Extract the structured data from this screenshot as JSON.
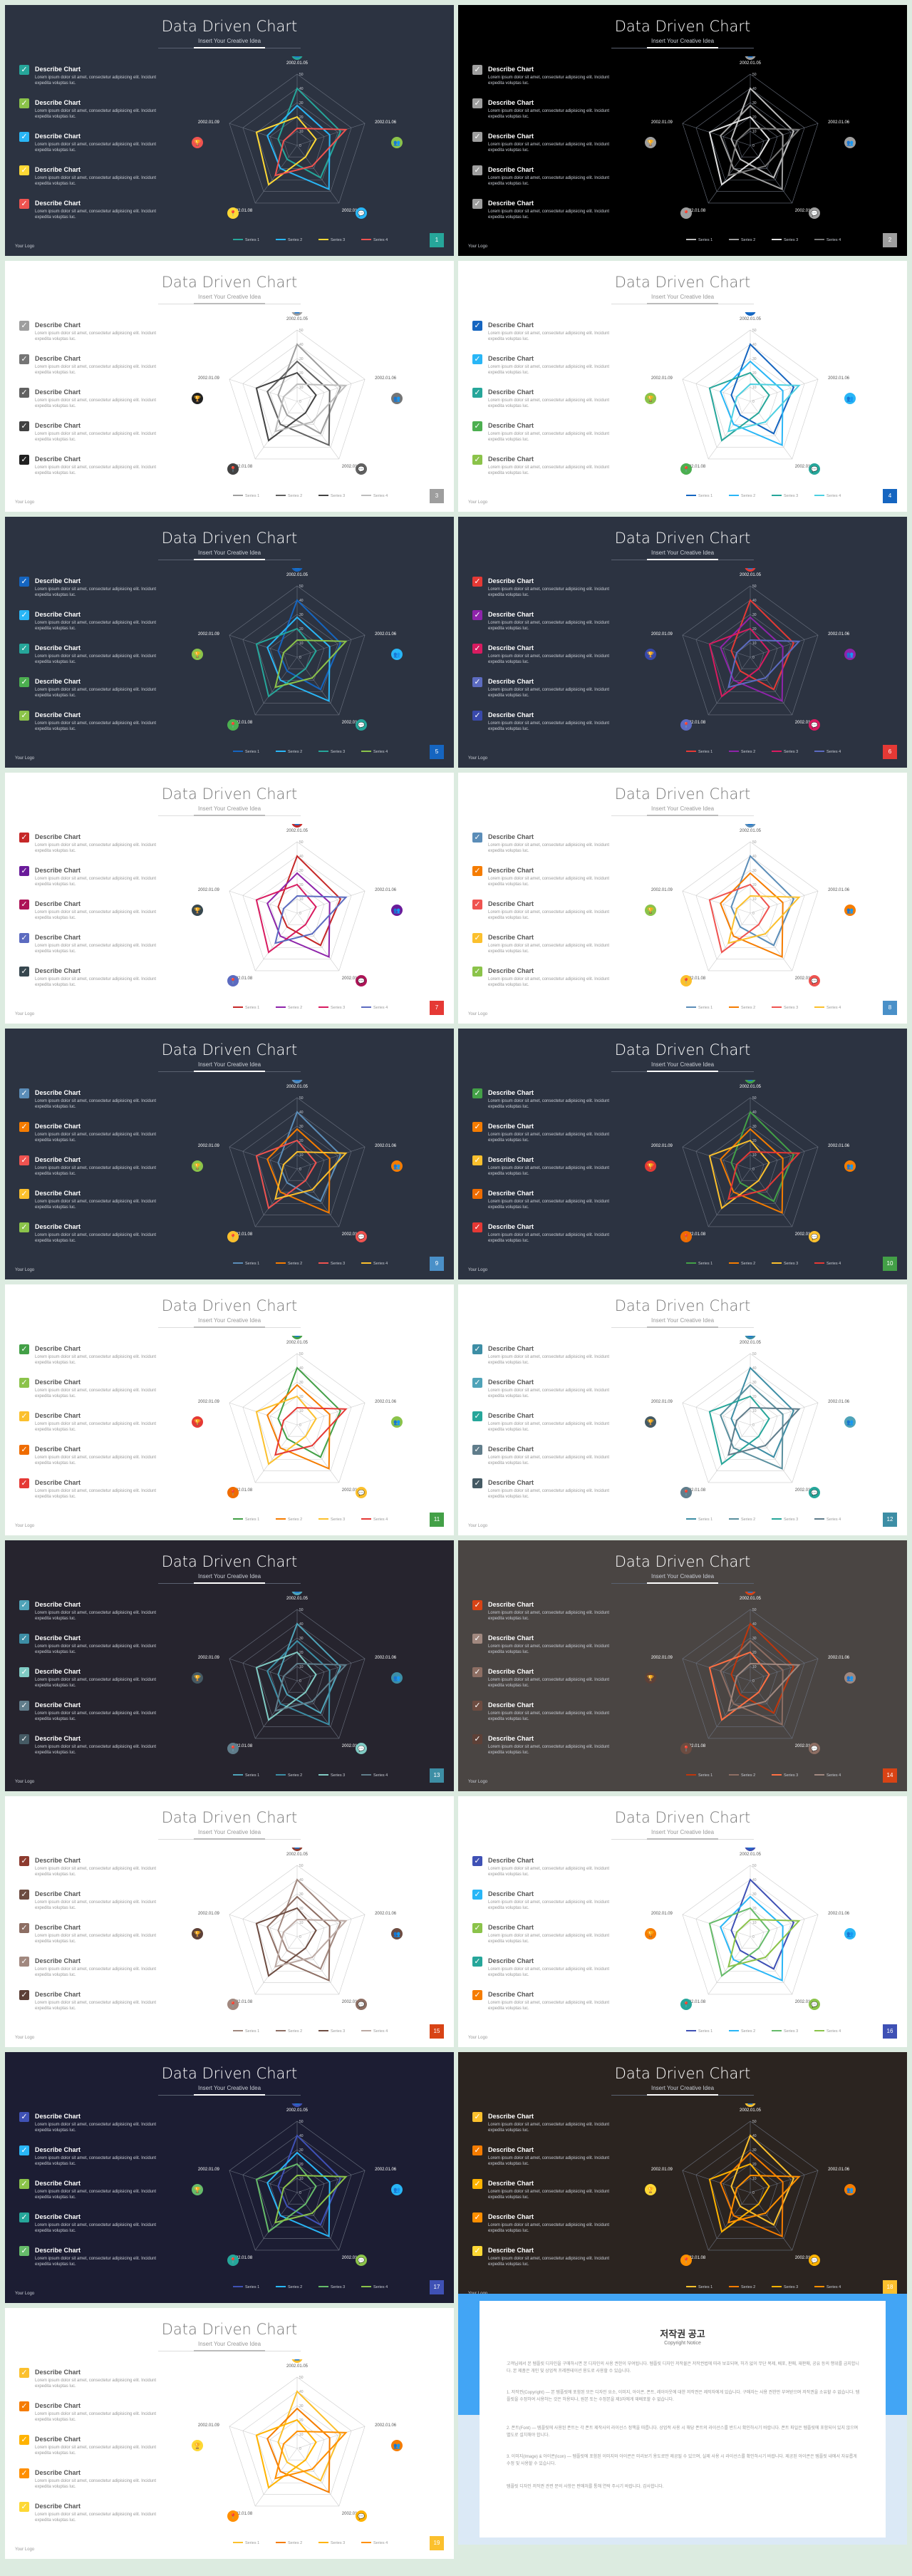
{
  "slide_title": "Data Driven Chart",
  "slide_subtitle": "Insert Your Creative Idea",
  "item_label": "Describe Chart",
  "item_desc": "Lorem ipsum dolor sit amet, consectetur adipisicing elit. Incidunt expedita voluptas luc.",
  "logo": "Your Logo",
  "radar_axis_labels": [
    "2002.01.05",
    "2002.01.06",
    "2002.01.07",
    "2002.01.08",
    "2002.01.09"
  ],
  "radar_ticks": [
    "0",
    "10",
    "20",
    "30",
    "40",
    "50"
  ],
  "series_names": [
    "Series 1",
    "Series 2",
    "Series 3",
    "Series 4"
  ],
  "chart_data": {
    "type": "radar",
    "categories": [
      "2002.01.05",
      "2002.01.06",
      "2002.01.07",
      "2002.01.08",
      "2002.01.09"
    ],
    "series": [
      {
        "name": "Series 1",
        "values": [
          40,
          32,
          28,
          12,
          14
        ]
      },
      {
        "name": "Series 2",
        "values": [
          28,
          24,
          38,
          20,
          22
        ]
      },
      {
        "name": "Series 3",
        "values": [
          20,
          14,
          10,
          34,
          30
        ]
      },
      {
        "name": "Series 4",
        "values": [
          12,
          36,
          18,
          26,
          10
        ]
      }
    ],
    "rlim": [
      0,
      50
    ]
  },
  "icon_names": [
    "user-icon",
    "team-icon",
    "chat-icon",
    "pin-icon",
    "trophy-icon"
  ],
  "slides": [
    {
      "num": "1",
      "bg": "#2c3341",
      "dark": true,
      "accent": "#26a69a",
      "series": [
        "#26a69a",
        "#29b6f6",
        "#fdd835",
        "#ef5350"
      ],
      "checks": [
        "#26a69a",
        "#8bc34a",
        "#29b6f6",
        "#fdd835",
        "#ef5350"
      ]
    },
    {
      "num": "2",
      "bg": "#000000",
      "dark": true,
      "accent": "#9e9e9e",
      "series": [
        "#bdbdbd",
        "#9e9e9e",
        "#e0e0e0",
        "#757575"
      ],
      "checks": [
        "#9e9e9e",
        "#9e9e9e",
        "#9e9e9e",
        "#9e9e9e",
        "#9e9e9e"
      ]
    },
    {
      "num": "3",
      "bg": "#ffffff",
      "dark": false,
      "accent": "#9e9e9e",
      "series": [
        "#9e9e9e",
        "#616161",
        "#424242",
        "#bdbdbd"
      ],
      "checks": [
        "#9e9e9e",
        "#757575",
        "#616161",
        "#424242",
        "#212121"
      ]
    },
    {
      "num": "4",
      "bg": "#ffffff",
      "dark": false,
      "accent": "#1565c0",
      "series": [
        "#1565c0",
        "#29b6f6",
        "#26a69a",
        "#4dd0e1"
      ],
      "checks": [
        "#1565c0",
        "#29b6f6",
        "#26a69a",
        "#4caf50",
        "#8bc34a"
      ]
    },
    {
      "num": "5",
      "bg": "#2c3341",
      "dark": true,
      "accent": "#1565c0",
      "series": [
        "#1565c0",
        "#29b6f6",
        "#26a69a",
        "#8bc34a"
      ],
      "checks": [
        "#1565c0",
        "#29b6f6",
        "#26a69a",
        "#4caf50",
        "#8bc34a"
      ]
    },
    {
      "num": "6",
      "bg": "#2c3341",
      "dark": true,
      "accent": "#e53935",
      "series": [
        "#e53935",
        "#8e24aa",
        "#d81b60",
        "#5c6bc0"
      ],
      "checks": [
        "#e53935",
        "#8e24aa",
        "#d81b60",
        "#5c6bc0",
        "#3949ab"
      ]
    },
    {
      "num": "7",
      "bg": "#ffffff",
      "dark": false,
      "accent": "#e53935",
      "series": [
        "#c62828",
        "#8e24aa",
        "#d81b60",
        "#5c6bc0"
      ],
      "checks": [
        "#c62828",
        "#6a1b9a",
        "#ad1457",
        "#5c6bc0",
        "#37474f"
      ]
    },
    {
      "num": "8",
      "bg": "#ffffff",
      "dark": false,
      "accent": "#4a90c8",
      "series": [
        "#5b8db8",
        "#f57c00",
        "#ef5350",
        "#fbc02d"
      ],
      "checks": [
        "#5b8db8",
        "#f57c00",
        "#ef5350",
        "#fbc02d",
        "#8bc34a"
      ]
    },
    {
      "num": "9",
      "bg": "#2c3341",
      "dark": true,
      "accent": "#4a90c8",
      "series": [
        "#5b8db8",
        "#f57c00",
        "#ef5350",
        "#fbc02d"
      ],
      "checks": [
        "#5b8db8",
        "#f57c00",
        "#ef5350",
        "#fbc02d",
        "#8bc34a"
      ]
    },
    {
      "num": "10",
      "bg": "#2c3341",
      "dark": true,
      "accent": "#43a047",
      "series": [
        "#43a047",
        "#f57c00",
        "#fbc02d",
        "#e53935"
      ],
      "checks": [
        "#43a047",
        "#f57c00",
        "#fbc02d",
        "#ef6c00",
        "#e53935"
      ]
    },
    {
      "num": "11",
      "bg": "#ffffff",
      "dark": false,
      "accent": "#43a047",
      "series": [
        "#43a047",
        "#f57c00",
        "#fbc02d",
        "#e53935"
      ],
      "checks": [
        "#43a047",
        "#8bc34a",
        "#fbc02d",
        "#ef6c00",
        "#e53935"
      ]
    },
    {
      "num": "12",
      "bg": "#ffffff",
      "dark": false,
      "accent": "#3d8ea5",
      "series": [
        "#3d8ea5",
        "#5a8f9e",
        "#26a69a",
        "#607d8b"
      ],
      "checks": [
        "#3d8ea5",
        "#4fa3b8",
        "#26a69a",
        "#607d8b",
        "#455a64"
      ]
    },
    {
      "num": "13",
      "bg": "#26242e",
      "dark": true,
      "accent": "#3d8ea5",
      "series": [
        "#4fa3b8",
        "#3d8ea5",
        "#80cbc4",
        "#607d8b"
      ],
      "checks": [
        "#4fa3b8",
        "#3d8ea5",
        "#80cbc4",
        "#607d8b",
        "#455a64"
      ]
    },
    {
      "num": "14",
      "bg": "#4a4543",
      "dark": true,
      "accent": "#d84315",
      "series": [
        "#bf360c",
        "#8d6e63",
        "#ff7043",
        "#a1887f"
      ],
      "checks": [
        "#d84315",
        "#a1887f",
        "#8d6e63",
        "#6d4c41",
        "#5d4037"
      ]
    },
    {
      "num": "15",
      "bg": "#ffffff",
      "dark": false,
      "accent": "#d84315",
      "series": [
        "#a1887f",
        "#8d6e63",
        "#6d4c41",
        "#bcaaa4"
      ],
      "checks": [
        "#8d3b2f",
        "#6d4c41",
        "#8d6e63",
        "#a1887f",
        "#5d4037"
      ]
    },
    {
      "num": "16",
      "bg": "#ffffff",
      "dark": false,
      "accent": "#3f51b5",
      "series": [
        "#3f51b5",
        "#29b6f6",
        "#66bb6a",
        "#8bc34a"
      ],
      "checks": [
        "#3f51b5",
        "#29b6f6",
        "#8bc34a",
        "#26a69a",
        "#f57c00"
      ]
    },
    {
      "num": "17",
      "bg": "#1c1d33",
      "dark": true,
      "accent": "#3f51b5",
      "series": [
        "#3f51b5",
        "#29b6f6",
        "#66bb6a",
        "#8bc34a"
      ],
      "checks": [
        "#3f51b5",
        "#29b6f6",
        "#8bc34a",
        "#26a69a",
        "#66bb6a"
      ]
    },
    {
      "num": "18",
      "bg": "#2b2420",
      "dark": true,
      "accent": "#fbc02d",
      "series": [
        "#fbc02d",
        "#f57c00",
        "#ffb300",
        "#ff8f00"
      ],
      "checks": [
        "#fbc02d",
        "#f57c00",
        "#ffb300",
        "#ff8f00",
        "#fdd835"
      ]
    },
    {
      "num": "19",
      "bg": "#ffffff",
      "dark": false,
      "accent": "#fbc02d",
      "series": [
        "#fbc02d",
        "#f57c00",
        "#ffb300",
        "#ff8f00"
      ],
      "checks": [
        "#fbc02d",
        "#f57c00",
        "#ffb300",
        "#ff8f00",
        "#fdd835"
      ]
    }
  ],
  "notice": {
    "title": "저작권 공고",
    "subtitle": "Copyright Notice",
    "para1": "고객님께서 본 템플릿 디자인을 구매하시면 본 디자인의 사용 권한이 부여됩니다. 템플릿 디자인 저작물은 저작권법에 따라 보호되며, 허가 없이 무단 복제, 배포, 판매, 재판매, 공유 등의 행위를 금지합니다. 본 제품은 개인 및 상업적 프레젠테이션 용도로 사용할 수 있습니다.",
    "para2": "1. 저작권(Copyright) — 본 템플릿에 포함된 모든 디자인 요소, 이미지, 아이콘, 폰트, 레이아웃에 대한 저작권은 제작자에게 있습니다. 구매자는 사용 권한만 부여받으며 저작권을 소유할 수 없습니다. 템플릿을 수정하여 사용하는 것은 허용되나, 원본 또는 수정본을 제3자에게 재배포할 수 없습니다.",
    "para3": "2. 폰트(Font) — 템플릿에 사용된 폰트는 각 폰트 제작사의 라이선스 정책을 따릅니다. 상업적 사용 시 해당 폰트의 라이선스를 반드시 확인하시기 바랍니다. 폰트 파일은 템플릿에 포함되어 있지 않으며 별도로 설치해야 합니다.",
    "para4": "3. 이미지(Image) & 아이콘(Icon) — 템플릿에 포함된 이미지와 아이콘은 미리보기 용도로만 제공될 수 있으며, 실제 사용 시 라이선스를 확인하시기 바랍니다. 제공된 아이콘은 템플릿 내에서 자유롭게 수정 및 사용할 수 있습니다.",
    "para5": "템플릿 디자인 저작권 관련 문의 사항은 판매처를 통해 연락 주시기 바랍니다. 감사합니다."
  }
}
